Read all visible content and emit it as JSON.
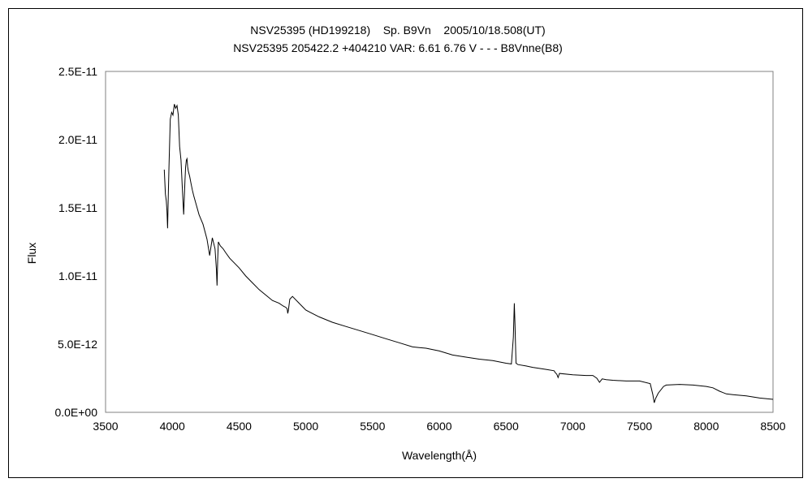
{
  "chart_data": {
    "type": "line",
    "title": "NSV25395 (HD199218)    Sp. B9Vn    2005/10/18.508(UT)",
    "subtitle": "NSV25395 205422.2 +404210 VAR: 6.61 6.76 V - - - B8Vnne(B8)",
    "xlabel": "Wavelength(Å)",
    "ylabel": "Flux",
    "xlim": [
      3500,
      8500
    ],
    "ylim": [
      0,
      2.5e-11
    ],
    "x_ticks": [
      3500,
      4000,
      4500,
      5000,
      5500,
      6000,
      6500,
      7000,
      7500,
      8000,
      8500
    ],
    "x_tick_labels": [
      "3500",
      "4000",
      "4500",
      "5000",
      "5500",
      "6000",
      "6500",
      "7000",
      "7500",
      "8000",
      "8500"
    ],
    "y_ticks": [
      0,
      5e-12,
      1e-11,
      1.5e-11,
      2e-11,
      2.5e-11
    ],
    "y_tick_labels": [
      "0.0E+00",
      "5.0E-12",
      "1.0E-11",
      "1.5E-11",
      "2.0E-11",
      "2.5E-11"
    ],
    "grid": false,
    "legend": "none",
    "line_color": "#000000",
    "series": [
      {
        "x": [
          3940,
          3948,
          3955,
          3960,
          3965,
          3970,
          3975,
          3985,
          3995,
          4005,
          4015,
          4025,
          4035,
          4045,
          4055,
          4065,
          4075,
          4085,
          4095,
          4100,
          4105,
          4110,
          4115,
          4120,
          4130,
          4140,
          4150,
          4160,
          4180,
          4200,
          4230,
          4260,
          4280,
          4300,
          4320,
          4330,
          4335,
          4340,
          4345,
          4350,
          4360,
          4380,
          4400,
          4430,
          4460,
          4500,
          4550,
          4600,
          4650,
          4700,
          4750,
          4800,
          4830,
          4850,
          4860,
          4865,
          4870,
          4880,
          4900,
          4950,
          5000,
          5100,
          5200,
          5300,
          5400,
          5500,
          5600,
          5700,
          5800,
          5850,
          5900,
          6000,
          6100,
          6200,
          6300,
          6400,
          6500,
          6540,
          6555,
          6562,
          6567,
          6575,
          6590,
          6650,
          6700,
          6800,
          6860,
          6870,
          6880,
          6890,
          6900,
          7000,
          7100,
          7150,
          7180,
          7200,
          7220,
          7250,
          7300,
          7400,
          7500,
          7580,
          7600,
          7610,
          7620,
          7640,
          7680,
          7700,
          7800,
          7900,
          8000,
          8050,
          8100,
          8150,
          8200,
          8300,
          8400,
          8500
        ],
        "y": [
          1.78e-11,
          1.6e-11,
          1.55e-11,
          1.48e-11,
          1.35e-11,
          1.6e-11,
          1.8e-11,
          2.15e-11,
          2.2e-11,
          2.18e-11,
          2.26e-11,
          2.23e-11,
          2.25e-11,
          2.18e-11,
          1.95e-11,
          1.85e-11,
          1.65e-11,
          1.45e-11,
          1.7e-11,
          1.8e-11,
          1.85e-11,
          1.86e-11,
          1.8e-11,
          1.77e-11,
          1.73e-11,
          1.68e-11,
          1.63e-11,
          1.59e-11,
          1.52e-11,
          1.45e-11,
          1.38e-11,
          1.27e-11,
          1.15e-11,
          1.28e-11,
          1.2e-11,
          1.05e-11,
          9.3e-12,
          1.12e-11,
          1.25e-11,
          1.24e-11,
          1.22e-11,
          1.2e-11,
          1.17e-11,
          1.13e-11,
          1.1e-11,
          1.06e-11,
          1e-11,
          9.5e-12,
          9e-12,
          8.6e-12,
          8.2e-12,
          8e-12,
          7.8e-12,
          7.7e-12,
          7.6e-12,
          7.25e-12,
          7.5e-12,
          8.3e-12,
          8.5e-12,
          8e-12,
          7.5e-12,
          7e-12,
          6.6e-12,
          6.3e-12,
          6e-12,
          5.7e-12,
          5.4e-12,
          5.1e-12,
          4.8e-12,
          4.75e-12,
          4.7e-12,
          4.5e-12,
          4.2e-12,
          4.05e-12,
          3.9e-12,
          3.8e-12,
          3.6e-12,
          3.55e-12,
          5.5e-12,
          8e-12,
          6.5e-12,
          3.6e-12,
          3.5e-12,
          3.4e-12,
          3.3e-12,
          3.15e-12,
          3.05e-12,
          2.9e-12,
          2.8e-12,
          2.55e-12,
          2.85e-12,
          2.75e-12,
          2.7e-12,
          2.7e-12,
          2.5e-12,
          2.2e-12,
          2.45e-12,
          2.4e-12,
          2.35e-12,
          2.3e-12,
          2.3e-12,
          2.1e-12,
          1.3e-12,
          7e-13,
          1e-12,
          1.4e-12,
          1.9e-12,
          2e-12,
          2.05e-12,
          2e-12,
          1.9e-12,
          1.8e-12,
          1.55e-12,
          1.35e-12,
          1.3e-12,
          1.2e-12,
          1.05e-12,
          9.5e-13
        ]
      }
    ]
  }
}
